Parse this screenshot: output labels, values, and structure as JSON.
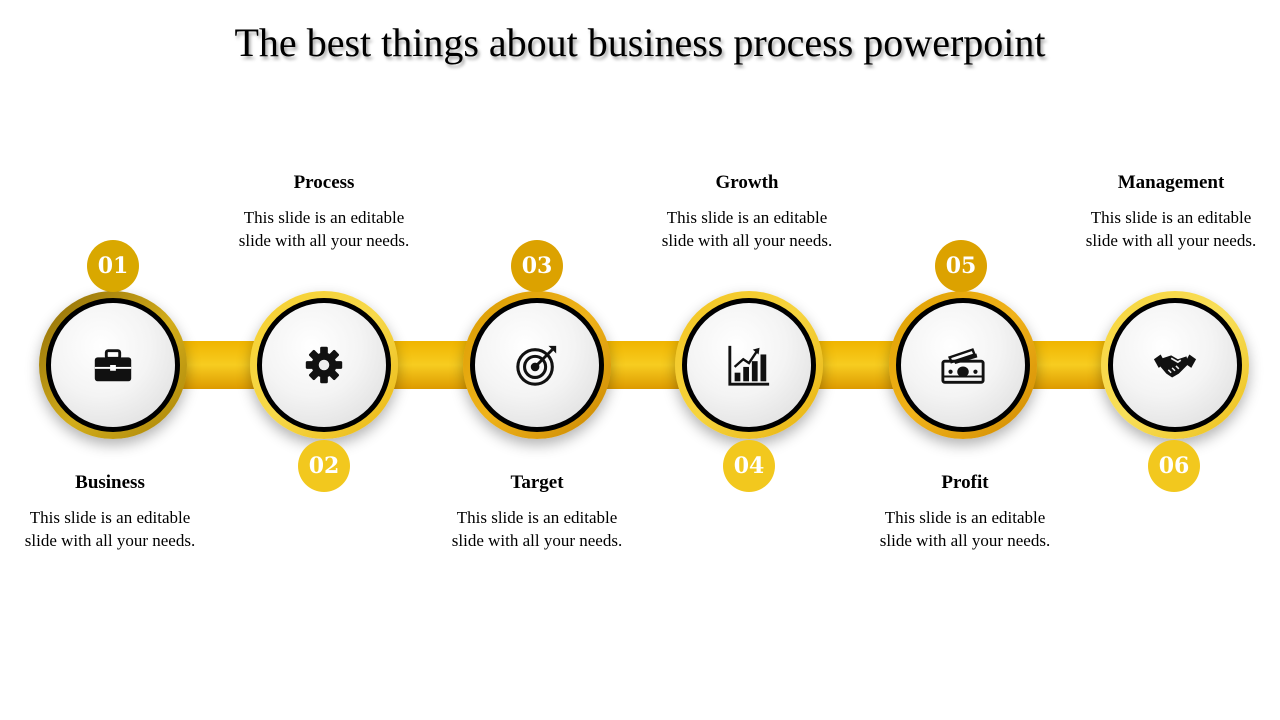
{
  "title": "The best things about business process powerpoint",
  "colors": {
    "accent_gold": "#f0b400",
    "accent_light": "#f5cc2a",
    "accent_dark": "#d9a200",
    "accent_olive": "#b68a08",
    "icon": "#111111"
  },
  "steps": [
    {
      "number": "01",
      "label": "Business",
      "description": "This slide is an editable slide with all your needs.",
      "icon": "briefcase-icon"
    },
    {
      "number": "02",
      "label": "Process",
      "description": "This slide is an editable slide with all your needs.",
      "icon": "gear-icon"
    },
    {
      "number": "03",
      "label": "Target",
      "description": "This slide is an editable slide with all your needs.",
      "icon": "target-icon"
    },
    {
      "number": "04",
      "label": "Growth",
      "description": "This slide is an editable slide with all your needs.",
      "icon": "bar-chart-icon"
    },
    {
      "number": "05",
      "label": "Profit",
      "description": "This slide is an editable slide with all your needs.",
      "icon": "money-icon"
    },
    {
      "number": "06",
      "label": "Management",
      "description": "This slide is an editable slide with all your needs.",
      "icon": "handshake-icon"
    }
  ]
}
